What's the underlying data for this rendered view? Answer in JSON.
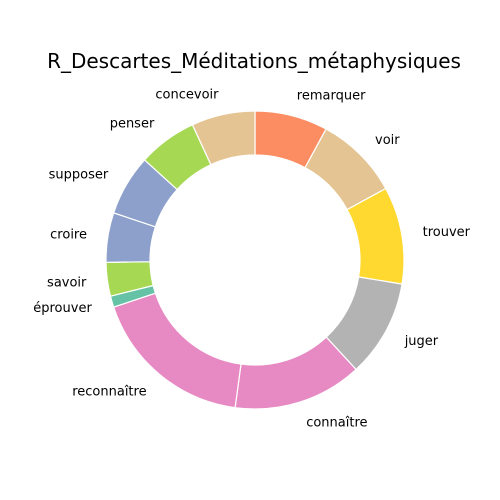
{
  "chart_data": {
    "type": "pie",
    "title": "R_Descartes_Méditations_métaphysiques",
    "donut": true,
    "start_angle_deg": 90,
    "direction": "clockwise",
    "categories": [
      "remarquer",
      "voir",
      "trouver",
      "juger",
      "connaître",
      "reconnaître",
      "éprouver",
      "savoir",
      "croire",
      "supposer",
      "penser",
      "concevoir"
    ],
    "values": [
      7.8,
      9.0,
      10.4,
      10.4,
      13.8,
      17.5,
      1.2,
      3.6,
      5.3,
      6.5,
      6.3,
      6.8
    ],
    "colors": [
      "#fc8d62",
      "#e5c494",
      "#ffd92f",
      "#b3b3b3",
      "#e78ac3",
      "#e78ac3",
      "#66c2a5",
      "#a6d854",
      "#8da0cb",
      "#8da0cb",
      "#a6d854",
      "#e5c494"
    ],
    "legend": "none",
    "grid": false
  }
}
